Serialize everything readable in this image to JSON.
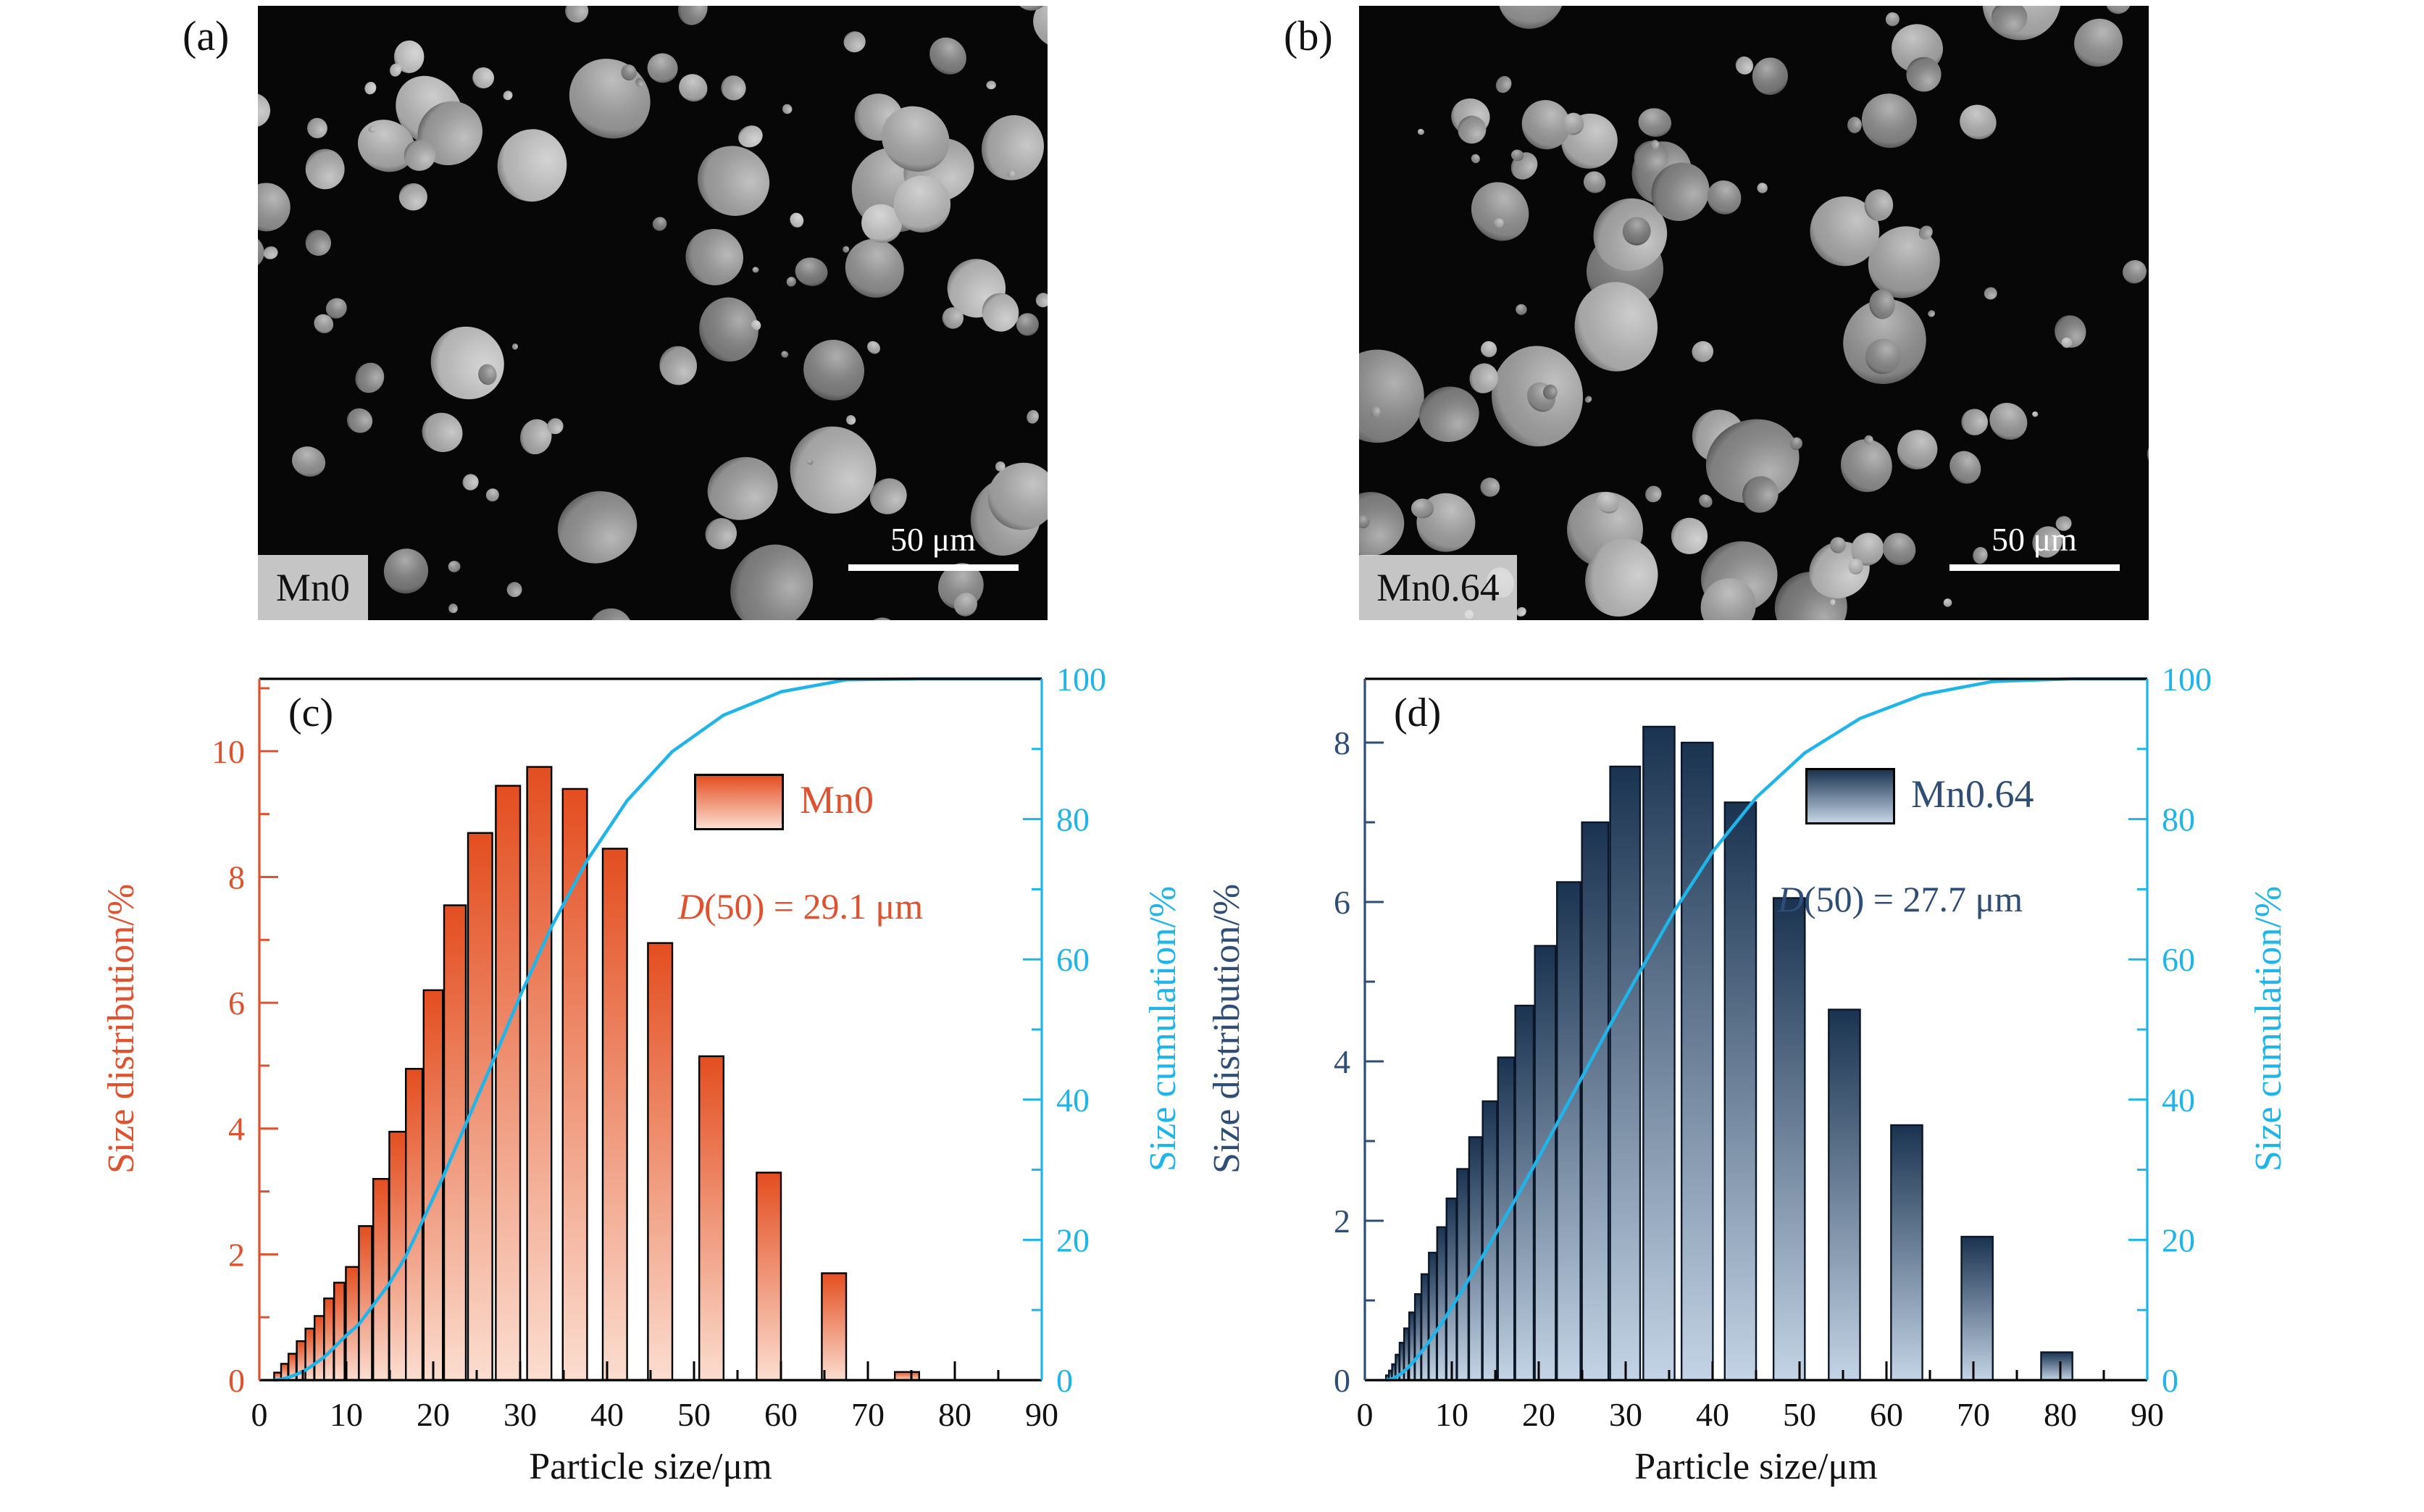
{
  "figure": {
    "sem_panels": [
      {
        "letter": "(a)",
        "sample": "Mn0",
        "scale_bar": "50 μm"
      },
      {
        "letter": "(b)",
        "sample": "Mn0.64",
        "scale_bar": "50 μm"
      }
    ]
  },
  "chart_data": [
    {
      "type": "bar",
      "panel": "(c)",
      "legend": "Mn0",
      "annotation": {
        "symbol": "D",
        "rest": "(50) = 29.1 μm"
      },
      "xlabel": "Particle size/μm",
      "ylabel_left": "Size distribution/%",
      "ylabel_right": "Size cumulation/%",
      "xlim": [
        0,
        90
      ],
      "ylim_left": [
        0,
        11.15
      ],
      "ylim_right": [
        0,
        100
      ],
      "x_ticks": [
        0,
        10,
        20,
        30,
        40,
        50,
        60,
        70,
        80,
        90
      ],
      "y_ticks_left": [
        0,
        2,
        4,
        6,
        8,
        10
      ],
      "y_ticks_right": [
        0,
        20,
        40,
        60,
        80,
        100
      ],
      "bar_centers": [
        2.1,
        2.9,
        3.8,
        4.8,
        5.8,
        6.9,
        8.0,
        9.2,
        10.7,
        12.2,
        14.0,
        15.9,
        17.8,
        20.0,
        22.5,
        25.4,
        28.6,
        32.2,
        36.3,
        40.9,
        46.1,
        52.0,
        58.6,
        66.1,
        74.5
      ],
      "bar_heights": [
        0.12,
        0.26,
        0.42,
        0.62,
        0.82,
        1.02,
        1.3,
        1.55,
        1.8,
        2.45,
        3.2,
        3.95,
        4.95,
        6.2,
        7.55,
        8.7,
        9.45,
        9.75,
        9.4,
        8.45,
        6.95,
        5.15,
        3.3,
        1.7,
        0.13
      ],
      "max_bar_width_um": 2.8,
      "colors": {
        "axis": "#e0512e",
        "bar_top": "#e34e20",
        "bar_bottom": "#fbddd0",
        "bar_border": "#000000",
        "cumulation": "#1fb5ea",
        "x_text": "#111111"
      }
    },
    {
      "type": "bar",
      "panel": "(d)",
      "legend": "Mn0.64",
      "annotation": {
        "symbol": "D",
        "rest": "(50) = 27.7 μm"
      },
      "xlabel": "Particle size/μm",
      "ylabel_left": "Size distribution/%",
      "ylabel_right": "Size cumulation/%",
      "xlim": [
        0,
        90
      ],
      "ylim_left": [
        0,
        8.8
      ],
      "ylim_right": [
        0,
        100
      ],
      "x_ticks": [
        0,
        10,
        20,
        30,
        40,
        50,
        60,
        70,
        80,
        90
      ],
      "y_ticks_left": [
        0,
        2,
        4,
        6,
        8
      ],
      "y_ticks_right": [
        0,
        20,
        40,
        60,
        80,
        100
      ],
      "bar_centers": [
        2.6,
        2.94,
        3.32,
        3.75,
        4.24,
        4.79,
        5.41,
        6.11,
        6.91,
        7.81,
        8.82,
        9.97,
        11.26,
        12.73,
        14.38,
        16.25,
        18.36,
        20.75,
        23.45,
        26.49,
        29.94,
        33.83,
        38.23,
        43.2,
        48.81,
        55.16,
        62.33,
        70.43,
        79.59
      ],
      "bar_heights": [
        0.06,
        0.12,
        0.2,
        0.32,
        0.47,
        0.65,
        0.85,
        1.08,
        1.33,
        1.6,
        1.92,
        2.28,
        2.65,
        3.05,
        3.5,
        4.05,
        4.7,
        5.45,
        6.25,
        7.0,
        7.7,
        8.2,
        8.0,
        7.25,
        6.05,
        4.65,
        3.2,
        1.8,
        0.35
      ],
      "max_bar_width_um": 3.6,
      "colors": {
        "axis": "#2e4d77",
        "bar_top": "#1a3350",
        "bar_bottom": "#c4d4e6",
        "bar_border": "#0b1626",
        "cumulation": "#1fb5ea",
        "x_text": "#111111"
      }
    }
  ]
}
